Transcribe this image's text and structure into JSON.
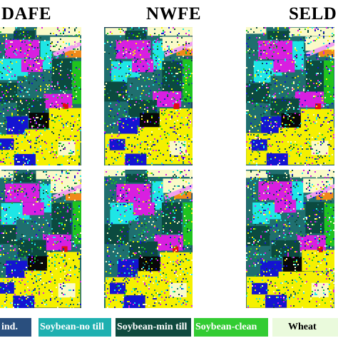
{
  "columns": [
    {
      "title": "DAFE"
    },
    {
      "title": "NWFE"
    },
    {
      "title": "SELD"
    }
  ],
  "legend": [
    {
      "label": "ind.",
      "color": "#2a4f7e",
      "text_color": "#ffffff"
    },
    {
      "label": "Soybean-no till",
      "color": "#1fb0b0",
      "text_color": "#ffffff"
    },
    {
      "label": "Soybean-min till",
      "color": "#0f4a3e",
      "text_color": "#ffffff"
    },
    {
      "label": "Soybean-clean",
      "color": "#33cc33",
      "text_color": "#ffffff"
    },
    {
      "label": "Wheat",
      "color": "#eafadc",
      "text_color": "#000000"
    }
  ],
  "class_colors": {
    "yellow": "#f5f000",
    "magenta": "#d81fe0",
    "cyan": "#1ee6e6",
    "green": "#1fc41f",
    "dark_green": "#0b4a3f",
    "blue": "#1414d2",
    "teal": "#1f6f6f",
    "cream": "#fafac8",
    "orange": "#f08a1a",
    "red": "#e01010",
    "black": "#080808",
    "pink": "#f0a0f0"
  }
}
